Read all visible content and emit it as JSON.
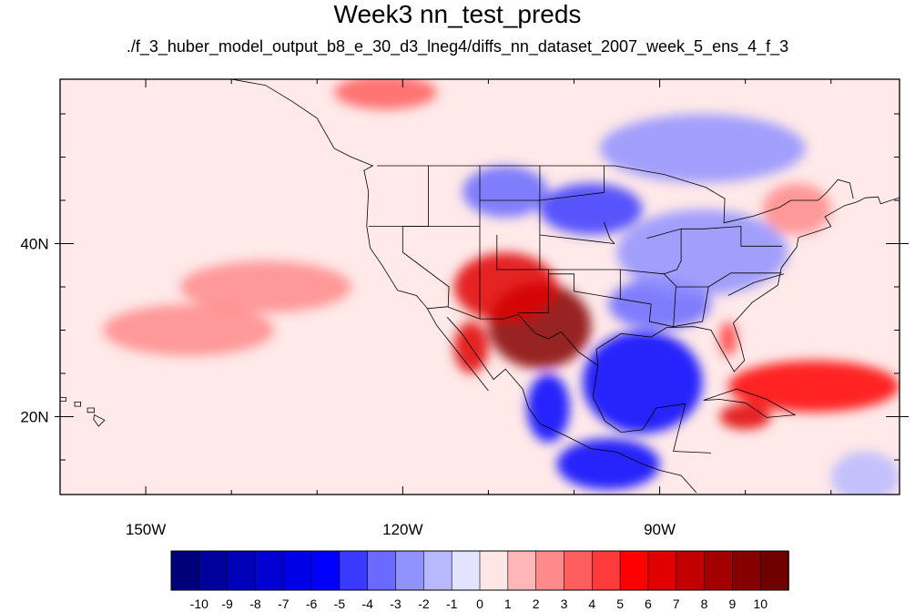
{
  "title": "Week3 nn_test_preds",
  "subtitle": "./f_3_huber_model_output_b8_e_30_d3_lneg4/diffs_nn_dataset_2007_week_5_ens_4_f_3",
  "map": {
    "projection": "cylindrical-equidistant",
    "lon_range": [
      -160,
      -62
    ],
    "lat_range": [
      11,
      59
    ],
    "lon_ticks": [
      {
        "value": -150,
        "label": "150W"
      },
      {
        "value": -120,
        "label": "120W"
      },
      {
        "value": -90,
        "label": "90W"
      }
    ],
    "lat_ticks": [
      {
        "value": 40,
        "label": "40N"
      },
      {
        "value": 20,
        "label": "20N"
      }
    ],
    "field_features": [
      {
        "lon": -104,
        "lat": 30.5,
        "value": 9,
        "rx": 6,
        "ry": 5
      },
      {
        "lon": -108,
        "lat": 35,
        "value": 6,
        "rx": 6,
        "ry": 4
      },
      {
        "lon": -112,
        "lat": 28,
        "value": 6,
        "rx": 2,
        "ry": 3
      },
      {
        "lon": -92,
        "lat": 24,
        "value": -6,
        "rx": 7,
        "ry": 6
      },
      {
        "lon": -96,
        "lat": 14.5,
        "value": -6,
        "rx": 6,
        "ry": 3
      },
      {
        "lon": -103,
        "lat": 21,
        "value": -6,
        "rx": 2.5,
        "ry": 4
      },
      {
        "lon": -90,
        "lat": 33,
        "value": -4,
        "rx": 6,
        "ry": 3
      },
      {
        "lon": -98,
        "lat": 44,
        "value": -5,
        "rx": 6,
        "ry": 3
      },
      {
        "lon": -108,
        "lat": 46,
        "value": -4,
        "rx": 5,
        "ry": 3
      },
      {
        "lon": -85,
        "lat": 39,
        "value": -3,
        "rx": 10,
        "ry": 5
      },
      {
        "lon": -85,
        "lat": 51,
        "value": -3,
        "rx": 12,
        "ry": 4
      },
      {
        "lon": -72,
        "lat": 23.5,
        "value": 5,
        "rx": 10,
        "ry": 3
      },
      {
        "lon": -80,
        "lat": 20,
        "value": 6,
        "rx": 3,
        "ry": 1.5
      },
      {
        "lon": -74,
        "lat": 44,
        "value": 2,
        "rx": 4,
        "ry": 3
      },
      {
        "lon": -122,
        "lat": 57.5,
        "value": 3,
        "rx": 6,
        "ry": 2
      },
      {
        "lon": -136,
        "lat": 35,
        "value": 2,
        "rx": 10,
        "ry": 3
      },
      {
        "lon": -145,
        "lat": 30,
        "value": 2,
        "rx": 10,
        "ry": 3
      },
      {
        "lon": -82,
        "lat": 29,
        "value": 4,
        "rx": 1,
        "ry": 2
      },
      {
        "lon": -66,
        "lat": 13,
        "value": -2,
        "rx": 4,
        "ry": 3
      }
    ]
  },
  "colorbar": {
    "levels": [
      "-10",
      "-9",
      "-8",
      "-7",
      "-6",
      "-5",
      "-4",
      "-3",
      "-2",
      "-1",
      "0",
      "1",
      "2",
      "3",
      "4",
      "5",
      "6",
      "7",
      "8",
      "9",
      "10"
    ],
    "colors": [
      "#00007a",
      "#00009c",
      "#0000b8",
      "#0000d2",
      "#0000e8",
      "#0000ff",
      "#3a3aff",
      "#6a6aff",
      "#9292ff",
      "#b8b8ff",
      "#e2e4ff",
      "#ffe6e6",
      "#ffb6b6",
      "#ff8a8a",
      "#ff5e5e",
      "#ff3a3a",
      "#ff0000",
      "#e00000",
      "#c20000",
      "#a20000",
      "#860000",
      "#700000"
    ]
  }
}
